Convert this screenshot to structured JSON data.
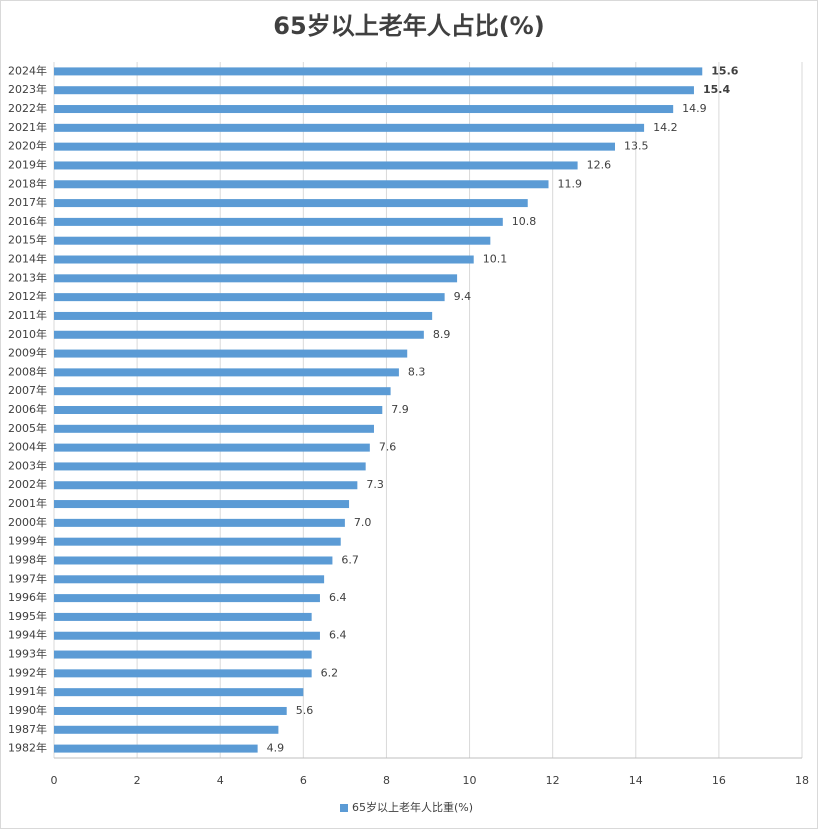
{
  "chart_data": {
    "type": "barh",
    "title": "65岁以上老年人占比(%)",
    "categories": [
      "2024年",
      "2023年",
      "2022年",
      "2021年",
      "2020年",
      "2019年",
      "2018年",
      "2017年",
      "2016年",
      "2015年",
      "2014年",
      "2013年",
      "2012年",
      "2011年",
      "2010年",
      "2009年",
      "2008年",
      "2007年",
      "2006年",
      "2005年",
      "2004年",
      "2003年",
      "2002年",
      "2001年",
      "2000年",
      "1999年",
      "1998年",
      "1997年",
      "1996年",
      "1995年",
      "1994年",
      "1993年",
      "1992年",
      "1991年",
      "1990年",
      "1987年",
      "1982年"
    ],
    "series": [
      {
        "name": "65岁以上老年人比重(%)",
        "color": "#5b9bd5",
        "values": [
          15.6,
          15.4,
          14.9,
          14.2,
          13.5,
          12.6,
          11.9,
          11.4,
          10.8,
          10.5,
          10.1,
          9.7,
          9.4,
          9.1,
          8.9,
          8.5,
          8.3,
          8.1,
          7.9,
          7.7,
          7.6,
          7.5,
          7.3,
          7.1,
          7.0,
          6.9,
          6.7,
          6.5,
          6.4,
          6.2,
          6.4,
          6.2,
          6.2,
          6.0,
          5.6,
          5.4,
          4.9
        ],
        "value_labels": [
          "15.6",
          "15.4",
          "14.9",
          "14.2",
          "13.5",
          "12.6",
          "11.9",
          null,
          "10.8",
          null,
          "10.1",
          null,
          "9.4",
          null,
          "8.9",
          null,
          "8.3",
          null,
          "7.9",
          null,
          "7.6",
          null,
          "7.3",
          null,
          "7.0",
          null,
          "6.7",
          null,
          "6.4",
          null,
          "6.4",
          null,
          "6.2",
          null,
          "5.6",
          null,
          "4.9"
        ],
        "value_label_colors": [
          "#e00000",
          "#e00000",
          "#404040",
          "#404040",
          "#404040",
          "#404040",
          "#404040",
          null,
          "#404040",
          null,
          "#404040",
          null,
          "#404040",
          null,
          "#404040",
          null,
          "#404040",
          null,
          "#404040",
          null,
          "#404040",
          null,
          "#404040",
          null,
          "#404040",
          null,
          "#404040",
          null,
          "#404040",
          null,
          "#404040",
          null,
          "#404040",
          null,
          "#404040",
          null,
          "#404040"
        ]
      }
    ],
    "xlim": [
      0,
      18
    ],
    "xticks": [
      0,
      2,
      4,
      6,
      8,
      10,
      12,
      14,
      16,
      18
    ],
    "grid": true,
    "legend": "bottom"
  }
}
